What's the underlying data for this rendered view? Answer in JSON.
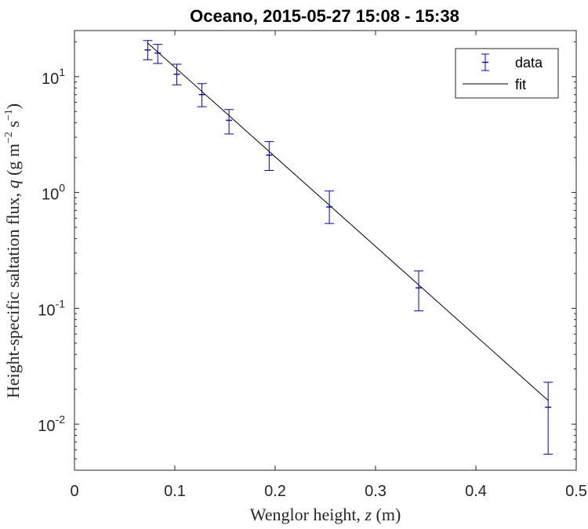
{
  "chart_data": {
    "type": "scatter",
    "title": "Oceano, 2015-05-27 15:08 - 15:38",
    "xlabel": "Wenglor height, z (m)",
    "xlabel_parts": [
      "Wenglor height, ",
      "z",
      " (m)"
    ],
    "ylabel": "Height-specific saltation flux, q (g m^-2 s^-1)",
    "ylabel_parts": {
      "pre": "Height-specific saltation flux, ",
      "q": "q",
      "g": " (g m",
      "exp1": "−2",
      "s": " s",
      "exp2": "−1",
      "close": ")"
    },
    "xlim": [
      0,
      0.5
    ],
    "ylim": [
      0.004,
      25
    ],
    "yscale": "log",
    "xticks": [
      0,
      0.1,
      0.2,
      0.3,
      0.4,
      0.5
    ],
    "xtick_labels": [
      "0",
      "0.1",
      "0.2",
      "0.3",
      "0.4",
      "0.5"
    ],
    "yticks": [
      0.01,
      0.1,
      1,
      10
    ],
    "ytick_labels": [
      {
        "base": "10",
        "exp": "-2"
      },
      {
        "base": "10",
        "exp": "-1"
      },
      {
        "base": "10",
        "exp": "0"
      },
      {
        "base": "10",
        "exp": "1"
      }
    ],
    "grid": false,
    "legend": {
      "position": "top-right",
      "entries": [
        "data",
        "fit"
      ]
    },
    "series": [
      {
        "name": "data",
        "style": "errorbar",
        "color": "#0000bf",
        "x": [
          0.073,
          0.083,
          0.102,
          0.127,
          0.154,
          0.194,
          0.254,
          0.343,
          0.472
        ],
        "y": [
          17.0,
          16.0,
          10.5,
          7.0,
          4.2,
          2.1,
          0.75,
          0.15,
          0.014
        ],
        "y_low": [
          14.0,
          13.0,
          8.5,
          5.5,
          3.2,
          1.55,
          0.54,
          0.095,
          0.0055
        ],
        "y_high": [
          20.5,
          19.0,
          12.8,
          8.7,
          5.2,
          2.75,
          1.03,
          0.21,
          0.023
        ]
      },
      {
        "name": "fit",
        "style": "line",
        "color": "#000000",
        "x": [
          0.073,
          0.472
        ],
        "y": [
          19.5,
          0.016
        ]
      }
    ]
  }
}
